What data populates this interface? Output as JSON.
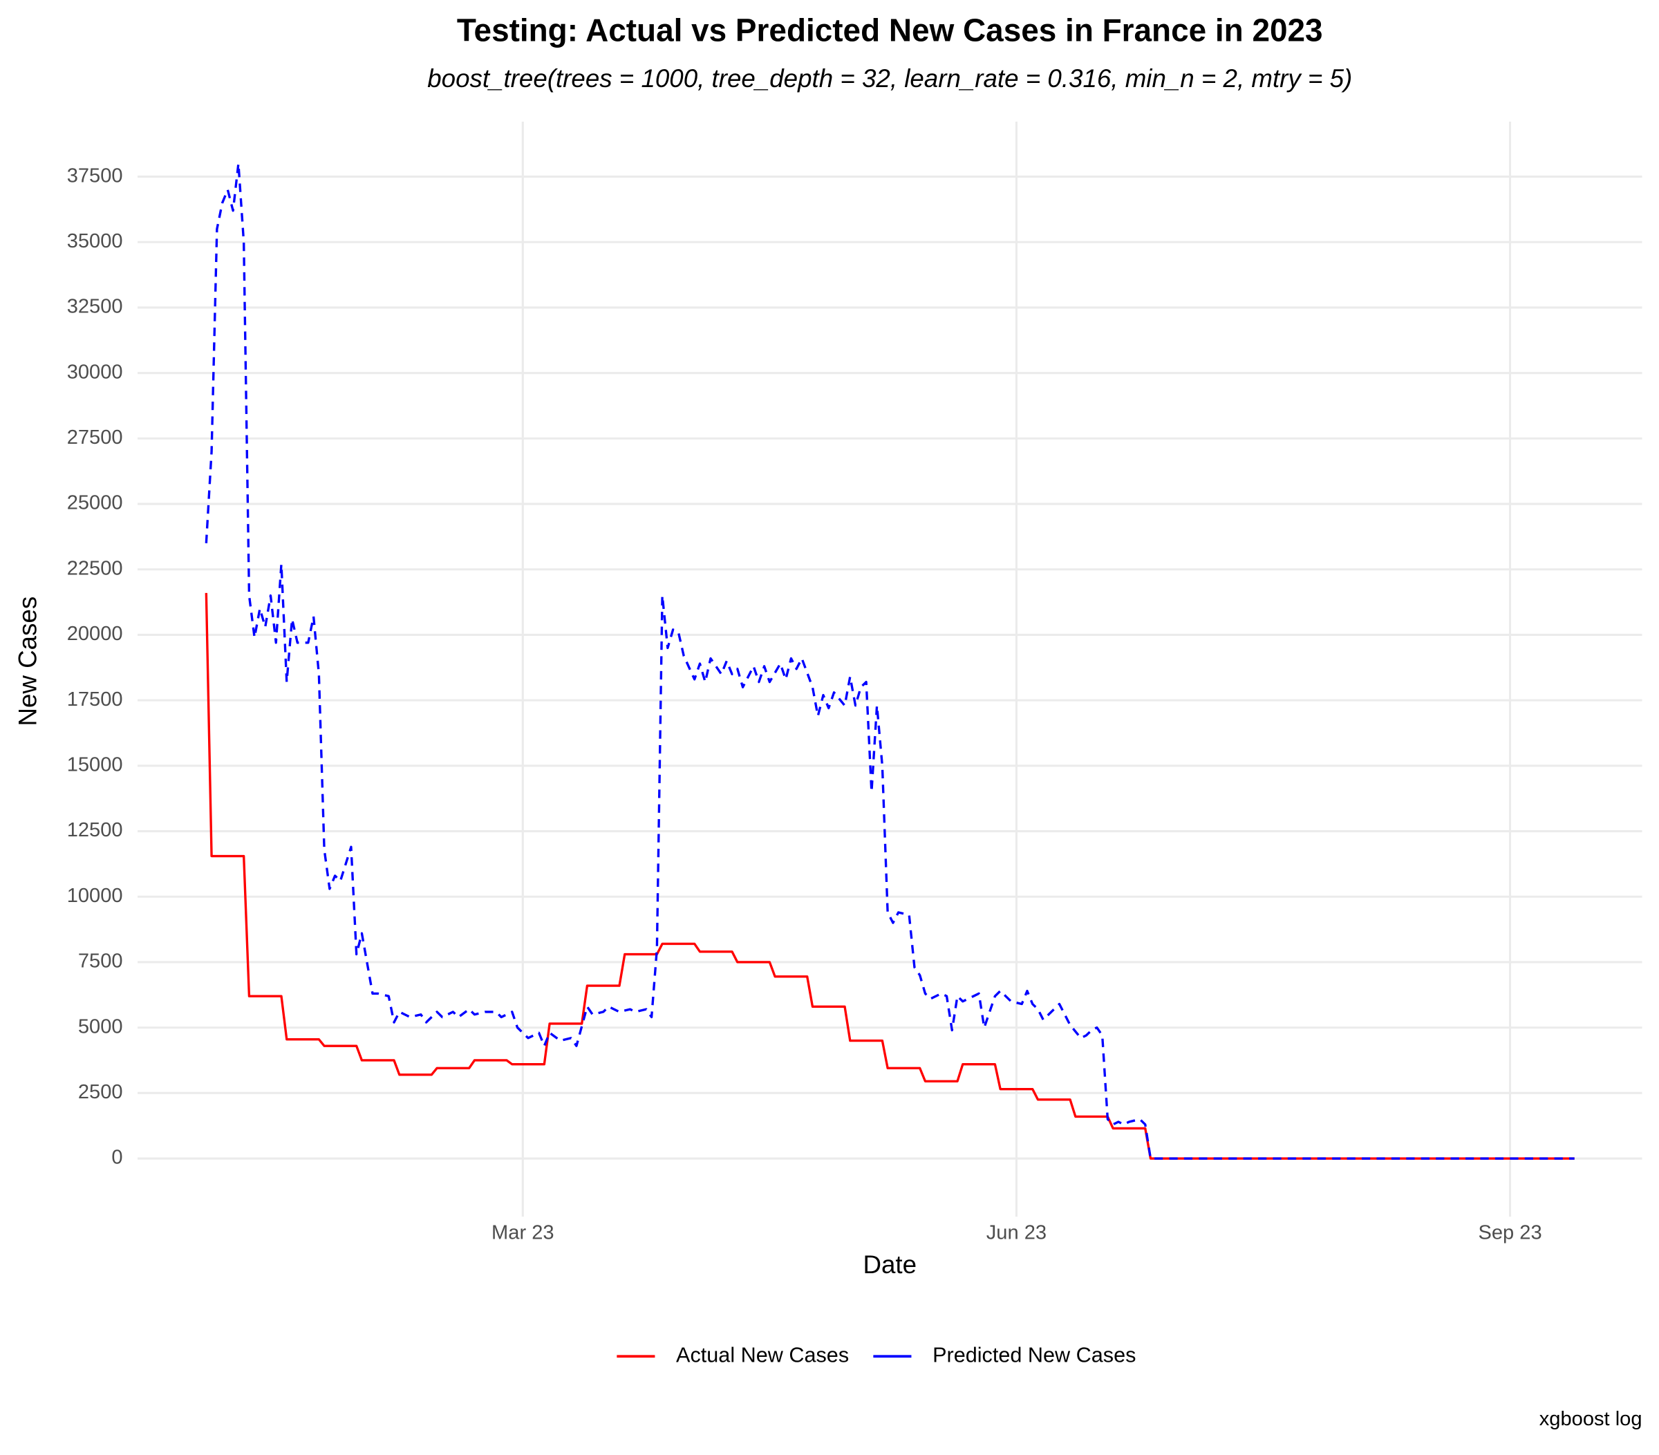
{
  "chart_data": {
    "type": "line",
    "title": "Testing: Actual vs Predicted New Cases in France in 2023",
    "subtitle": "boost_tree(trees = 1000, tree_depth = 32, learn_rate = 0.316, min_n = 2, mtry = 5)",
    "x_label": "Date",
    "y_label": "New Cases",
    "caption": "xgboost log",
    "grid": true,
    "legend": "bottom",
    "xlim": [
      -12.8,
      267.6
    ],
    "ylim": [
      -2222,
      39600
    ],
    "xticks": [
      {
        "value": 59,
        "label": "Mar 23"
      },
      {
        "value": 151,
        "label": "Jun 23"
      },
      {
        "value": 243,
        "label": "Sep 23"
      }
    ],
    "yticks": [
      0,
      2500,
      5000,
      7500,
      10000,
      12500,
      15000,
      17500,
      20000,
      22500,
      25000,
      27500,
      30000,
      32500,
      35000,
      37500
    ],
    "series": [
      {
        "name": "Actual New Cases",
        "color": "#ff0000",
        "dash": false,
        "x": [
          0,
          1,
          7,
          8,
          14,
          15,
          21,
          22,
          28,
          29,
          35,
          36,
          42,
          43,
          49,
          50,
          56,
          57,
          63,
          64,
          70,
          71,
          77,
          78,
          84,
          85,
          91,
          92,
          98,
          99,
          105,
          106,
          112,
          113,
          119,
          120,
          126,
          127,
          133,
          134,
          140,
          141,
          147,
          148,
          154,
          155,
          161,
          162,
          168,
          169,
          175,
          176,
          255
        ],
        "values": [
          21600,
          11550,
          11550,
          6200,
          6200,
          4550,
          4550,
          4300,
          4300,
          3750,
          3750,
          3200,
          3200,
          3450,
          3450,
          3750,
          3750,
          3600,
          3600,
          5150,
          5150,
          6600,
          6600,
          7800,
          7800,
          8200,
          8200,
          7900,
          7900,
          7500,
          7500,
          6950,
          6950,
          5800,
          5800,
          4500,
          4500,
          3450,
          3450,
          2950,
          2950,
          3600,
          3600,
          2650,
          2650,
          2250,
          2250,
          1600,
          1600,
          1150,
          1150,
          0,
          0
        ]
      },
      {
        "name": "Predicted New Cases",
        "color": "#0000ff",
        "dash": true,
        "x": [
          0,
          1,
          2,
          3,
          4,
          5,
          6,
          7,
          8,
          9,
          10,
          11,
          12,
          13,
          14,
          15,
          16,
          17,
          19,
          20,
          21,
          22,
          23,
          24,
          25,
          27,
          28,
          29,
          31,
          32,
          34,
          35,
          36,
          38,
          40,
          41,
          43,
          44,
          46,
          47,
          49,
          50,
          52,
          54,
          55,
          57,
          58,
          60,
          62,
          63,
          64,
          66,
          68,
          69,
          71,
          72,
          74,
          75,
          77,
          79,
          80,
          82,
          83,
          84,
          85,
          86,
          87,
          88,
          89,
          91,
          92,
          93,
          94,
          96,
          97,
          98,
          99,
          100,
          102,
          103,
          104,
          105,
          107,
          108,
          109,
          110,
          111,
          113,
          114,
          115,
          116,
          117,
          119,
          120,
          121,
          122,
          123,
          124,
          125,
          126,
          127,
          128,
          129,
          131,
          132,
          133,
          134,
          135,
          137,
          138,
          139,
          140,
          141,
          143,
          144,
          145,
          147,
          148,
          149,
          150,
          152,
          153,
          154,
          155,
          156,
          158,
          159,
          160,
          161,
          163,
          164,
          165,
          166,
          167,
          168,
          169,
          170,
          171,
          172,
          174,
          175,
          176,
          255
        ],
        "values": [
          23500,
          27000,
          35500,
          36500,
          37000,
          36200,
          38000,
          35000,
          21500,
          19900,
          21000,
          20300,
          21500,
          19700,
          22700,
          18200,
          20600,
          19700,
          19700,
          20700,
          18500,
          11800,
          10300,
          10800,
          10600,
          11900,
          7800,
          8600,
          6300,
          6300,
          6200,
          5200,
          5600,
          5400,
          5500,
          5200,
          5600,
          5400,
          5600,
          5400,
          5700,
          5500,
          5600,
          5600,
          5400,
          5600,
          5000,
          4600,
          4800,
          4300,
          4800,
          4500,
          4600,
          4300,
          5800,
          5500,
          5600,
          5800,
          5600,
          5700,
          5600,
          5700,
          5400,
          8000,
          21500,
          19500,
          20200,
          20100,
          19200,
          18300,
          18900,
          18200,
          19100,
          18500,
          19000,
          18500,
          18700,
          18000,
          18800,
          18200,
          18800,
          18200,
          18900,
          18300,
          19100,
          18700,
          19100,
          18000,
          16900,
          17700,
          17200,
          17800,
          17300,
          18400,
          17300,
          18000,
          18200,
          14000,
          17300,
          15000,
          9400,
          9000,
          9400,
          9300,
          7300,
          7000,
          6300,
          6100,
          6300,
          6200,
          4900,
          6200,
          6000,
          6200,
          6300,
          5000,
          6200,
          6400,
          6200,
          6000,
          5900,
          6400,
          5900,
          5700,
          5300,
          5700,
          5900,
          5500,
          5100,
          4600,
          4700,
          4900,
          5000,
          4700,
          1500,
          1300,
          1400,
          1300,
          1400,
          1500,
          1300,
          0,
          0
        ]
      }
    ]
  }
}
